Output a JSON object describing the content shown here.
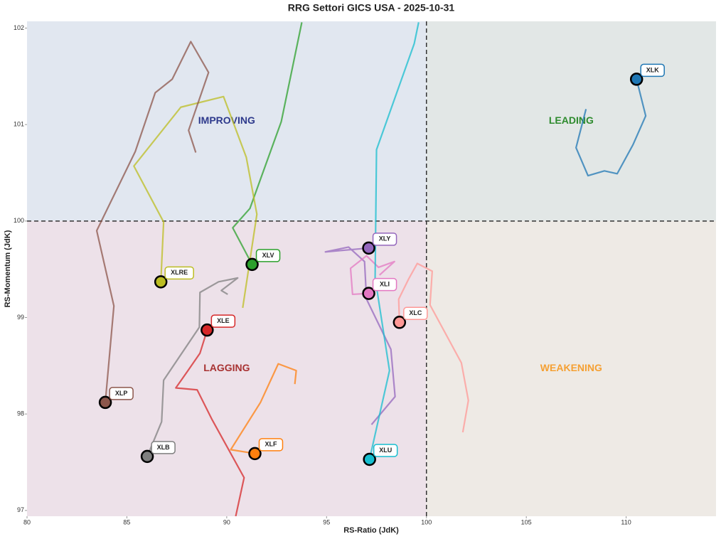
{
  "chart_data": {
    "type": "line",
    "title": "RRG Settori GICS USA - 2025-10-31",
    "x_label": "RS-Ratio (JdK)",
    "y_label": "RS-Momentum (JdK)",
    "xlim": [
      80,
      114.5
    ],
    "ylim": [
      96.94,
      102.07
    ],
    "xticks": [
      80,
      85,
      90,
      95,
      100,
      105,
      110
    ],
    "yticks": [
      97,
      98,
      99,
      100,
      101,
      102
    ],
    "reference_x": 100,
    "reference_y": 100,
    "quadrants": [
      {
        "label": "IMPROVING",
        "color": "#2e3a8c",
        "background": "#e1e7f0"
      },
      {
        "label": "LEADING",
        "color": "#2e8b2e",
        "background": "#e2e7e6"
      },
      {
        "label": "LAGGING",
        "color": "#a83232",
        "background": "#ede1e9"
      },
      {
        "label": "WEAKENING",
        "color": "#f5a033",
        "background": "#eeeae5"
      }
    ],
    "series": [
      {
        "name": "XLK",
        "color": "#1f77b4",
        "x": [
          107.99,
          107.49,
          108.09,
          108.91,
          109.55,
          110.34,
          110.98,
          110.52
        ],
        "values": [
          101.16,
          100.76,
          100.47,
          100.52,
          100.49,
          100.79,
          101.09,
          101.47
        ]
      },
      {
        "name": "XLY",
        "color": "#9467bd",
        "x": [
          97.25,
          98.43,
          98.22,
          97.0,
          96.9,
          96.1,
          94.94,
          97.11
        ],
        "values": [
          97.89,
          98.18,
          98.67,
          99.19,
          99.58,
          99.73,
          99.68,
          99.72
        ]
      },
      {
        "name": "XLI",
        "color": "#e377c2",
        "x": [
          97.65,
          98.4,
          97.6,
          97.0,
          96.2,
          96.3,
          97.11
        ],
        "values": [
          99.44,
          99.58,
          99.52,
          99.64,
          99.51,
          99.24,
          99.25
        ]
      },
      {
        "name": "XLC",
        "color": "#ff9896",
        "x": [
          101.82,
          102.1,
          101.75,
          100.18,
          100.29,
          99.54,
          99.11,
          98.61,
          98.65
        ],
        "values": [
          97.81,
          98.14,
          98.53,
          99.13,
          99.48,
          99.56,
          99.4,
          99.19,
          98.95
        ]
      },
      {
        "name": "XLU",
        "color": "#17becf",
        "x": [
          99.61,
          99.39,
          97.5,
          97.43,
          98.15,
          97.15
        ],
        "values": [
          102.06,
          101.84,
          100.74,
          99.41,
          98.45,
          97.53
        ]
      },
      {
        "name": "XLV",
        "color": "#2ca02c",
        "x": [
          93.76,
          92.73,
          91.16,
          90.3,
          91.27
        ],
        "values": [
          102.06,
          101.03,
          100.13,
          99.93,
          99.55
        ]
      },
      {
        "name": "XLRE",
        "color": "#bcbd22",
        "x": [
          90.8,
          91.51,
          90.98,
          89.84,
          87.7,
          85.35,
          86.84,
          86.7
        ],
        "values": [
          99.1,
          100.07,
          100.66,
          101.29,
          101.18,
          100.57,
          99.99,
          99.37
        ]
      },
      {
        "name": "XLP",
        "color": "#8c564b",
        "x": [
          88.45,
          88.09,
          89.09,
          88.2,
          87.27,
          86.42,
          85.42,
          83.49,
          84.35,
          83.92
        ],
        "values": [
          100.71,
          100.94,
          101.54,
          101.86,
          101.47,
          101.33,
          100.72,
          99.9,
          99.12,
          98.12
        ]
      },
      {
        "name": "XLB",
        "color": "#7f7f7f",
        "x": [
          90.05,
          89.73,
          90.55,
          89.59,
          88.66,
          88.63,
          86.84,
          86.74,
          86.02
        ],
        "values": [
          99.24,
          99.28,
          99.41,
          99.37,
          99.26,
          98.9,
          98.35,
          97.92,
          97.56
        ]
      },
      {
        "name": "XLE",
        "color": "#d62728",
        "x": [
          90.45,
          90.87,
          89.27,
          88.52,
          87.45,
          88.06,
          88.66,
          89.02
        ],
        "values": [
          96.94,
          97.34,
          97.94,
          98.25,
          98.27,
          98.45,
          98.63,
          98.87
        ]
      },
      {
        "name": "XLF",
        "color": "#ff7f0e",
        "x": [
          93.41,
          93.48,
          92.58,
          91.69,
          90.2,
          91.41
        ],
        "values": [
          98.31,
          98.45,
          98.52,
          98.12,
          97.63,
          97.59
        ]
      }
    ]
  }
}
